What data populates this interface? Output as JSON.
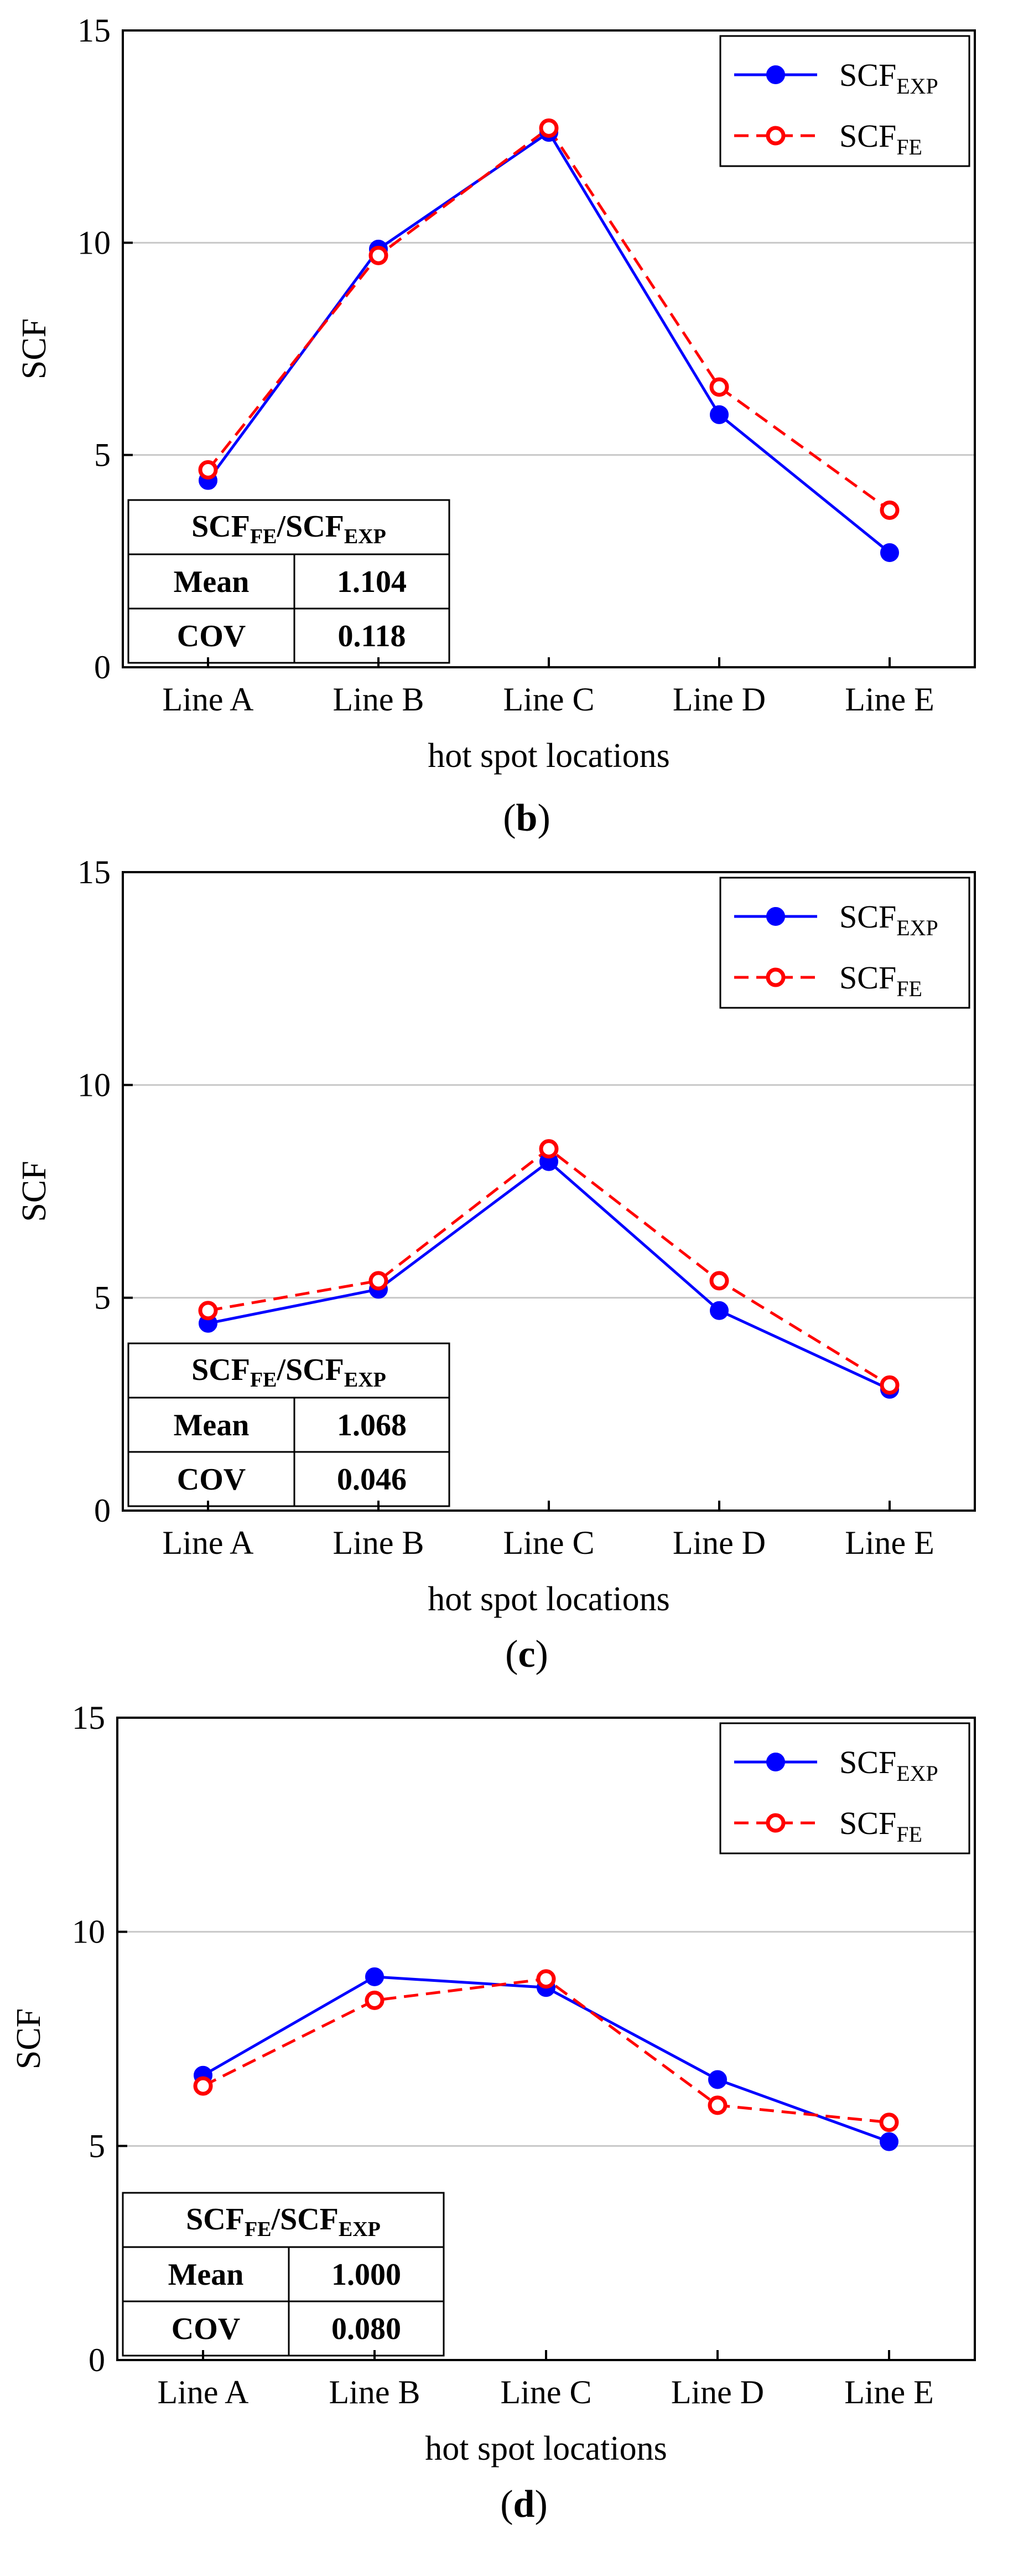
{
  "chart_data": [
    {
      "type": "line",
      "panel_label": "b",
      "title": "",
      "xlabel": "hot spot locations",
      "ylabel": "SCF",
      "categories": [
        "Line A",
        "Line B",
        "Line C",
        "Line D",
        "Line E"
      ],
      "ylim": [
        0,
        15
      ],
      "yticks": [
        0,
        5,
        10,
        15
      ],
      "grid": true,
      "legend_position": "top-right",
      "series": [
        {
          "name": "SCF",
          "sub": "EXP",
          "color": "#0000ff",
          "style": "solid",
          "marker": "filled-circle",
          "values": [
            4.4,
            9.85,
            12.6,
            5.95,
            2.7
          ]
        },
        {
          "name": "SCF",
          "sub": "FE",
          "color": "#ff0000",
          "style": "dashed",
          "marker": "open-circle",
          "values": [
            4.65,
            9.7,
            12.7,
            6.6,
            3.7
          ]
        }
      ],
      "table": {
        "header": {
          "a": "SCF",
          "a_sub": "FE",
          "sep": "/",
          "b": "SCF",
          "b_sub": "EXP"
        },
        "rows": [
          {
            "label": "Mean",
            "value": "1.104"
          },
          {
            "label": "COV",
            "value": "0.118"
          }
        ]
      }
    },
    {
      "type": "line",
      "panel_label": "c",
      "title": "",
      "xlabel": "hot spot locations",
      "ylabel": "SCF",
      "categories": [
        "Line A",
        "Line B",
        "Line C",
        "Line D",
        "Line E"
      ],
      "ylim": [
        0,
        15
      ],
      "yticks": [
        0,
        5,
        10,
        15
      ],
      "grid": true,
      "legend_position": "top-right",
      "series": [
        {
          "name": "SCF",
          "sub": "EXP",
          "color": "#0000ff",
          "style": "solid",
          "marker": "filled-circle",
          "values": [
            4.4,
            5.2,
            8.2,
            4.7,
            2.85
          ]
        },
        {
          "name": "SCF",
          "sub": "FE",
          "color": "#ff0000",
          "style": "dashed",
          "marker": "open-circle",
          "values": [
            4.7,
            5.4,
            8.5,
            5.4,
            2.95
          ]
        }
      ],
      "table": {
        "header": {
          "a": "SCF",
          "a_sub": "FE",
          "sep": "/",
          "b": "SCF",
          "b_sub": "EXP"
        },
        "rows": [
          {
            "label": "Mean",
            "value": "1.068"
          },
          {
            "label": "COV",
            "value": "0.046"
          }
        ]
      }
    },
    {
      "type": "line",
      "panel_label": "d",
      "title": "",
      "xlabel": "hot spot locations",
      "ylabel": "SCF",
      "categories": [
        "Line A",
        "Line B",
        "Line C",
        "Line D",
        "Line E"
      ],
      "ylim": [
        0,
        15
      ],
      "yticks": [
        0,
        5,
        10,
        15
      ],
      "grid": true,
      "legend_position": "top-right",
      "series": [
        {
          "name": "SCF",
          "sub": "EXP",
          "color": "#0000ff",
          "style": "solid",
          "marker": "filled-circle",
          "values": [
            6.65,
            8.95,
            8.7,
            6.55,
            5.1
          ]
        },
        {
          "name": "SCF",
          "sub": "FE",
          "color": "#ff0000",
          "style": "dashed",
          "marker": "open-circle",
          "values": [
            6.4,
            8.4,
            8.9,
            5.95,
            5.55
          ]
        }
      ],
      "table": {
        "header": {
          "a": "SCF",
          "a_sub": "FE",
          "sep": "/",
          "b": "SCF",
          "b_sub": "EXP"
        },
        "rows": [
          {
            "label": "Mean",
            "value": "1.000"
          },
          {
            "label": "COV",
            "value": "0.080"
          }
        ]
      }
    }
  ]
}
